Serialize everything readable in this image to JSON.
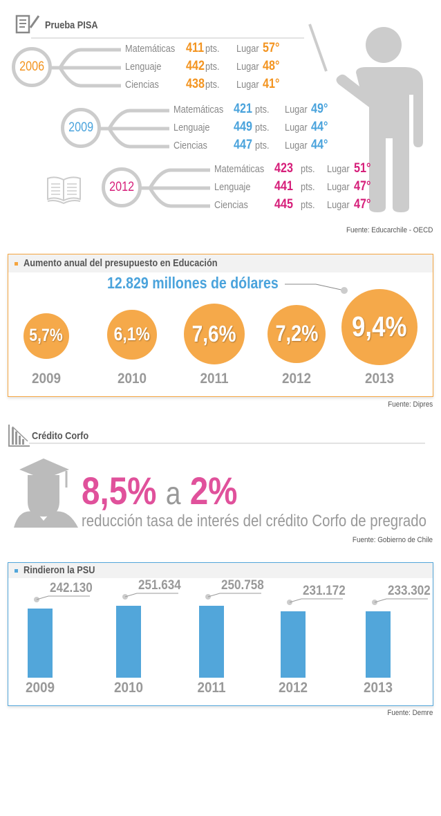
{
  "pisa": {
    "title": "Prueba PISA",
    "source": "Fuente: Educarchile - OECD",
    "pts": "pts.",
    "lugar": "Lugar",
    "years": [
      {
        "year": "2006",
        "color": "#f39420",
        "rows": [
          {
            "subject": "Matemáticas",
            "score": "411",
            "place": "57°"
          },
          {
            "subject": "Lenguaje",
            "score": "442",
            "place": "48°"
          },
          {
            "subject": "Ciencias",
            "score": "438",
            "place": "41°"
          }
        ]
      },
      {
        "year": "2009",
        "color": "#4aa3dc",
        "rows": [
          {
            "subject": "Matemáticas",
            "score": "421",
            "place": "49°"
          },
          {
            "subject": "Lenguaje",
            "score": "449",
            "place": "44°"
          },
          {
            "subject": "Ciencias",
            "score": "447",
            "place": "44°"
          }
        ]
      },
      {
        "year": "2012",
        "color": "#d61f7a",
        "rows": [
          {
            "subject": "Matemáticas",
            "score": "423",
            "place": "51°"
          },
          {
            "subject": "Lenguaje",
            "score": "441",
            "place": "47°"
          },
          {
            "subject": "Ciencias",
            "score": "445",
            "place": "47°"
          }
        ]
      }
    ]
  },
  "budget": {
    "title": "Aumento anual del presupuesto en Educación",
    "highlight": "12.829 millones de dólares",
    "source": "Fuente: Dipres",
    "accent": "#f5a540"
  },
  "corfo": {
    "title": "Crédito Corfo",
    "from": "8,5%",
    "connector": "a",
    "to": "2%",
    "subtitle": "reducción tasa de interés del crédito Corfo de pregrado",
    "source": "Fuente: Gobierno de Chile",
    "accent": "#e0519b"
  },
  "psu": {
    "title": "Rindieron la PSU",
    "source": "Fuente: Demre",
    "accent": "#52a6da"
  },
  "chart_data": [
    {
      "type": "bubble",
      "title": "Aumento anual del presupuesto en Educación",
      "categories": [
        "2009",
        "2010",
        "2011",
        "2012",
        "2013"
      ],
      "values": [
        5.7,
        6.1,
        7.6,
        7.2,
        9.4
      ],
      "labels": [
        "5,7%",
        "6,1%",
        "7,6%",
        "7,2%",
        "9,4%"
      ],
      "unit": "%"
    },
    {
      "type": "bar",
      "title": "Rindieron la PSU",
      "categories": [
        "2009",
        "2010",
        "2011",
        "2012",
        "2013"
      ],
      "values": [
        242130,
        251634,
        250758,
        231172,
        233302
      ],
      "labels": [
        "242.130",
        "251.634",
        "250.758",
        "231.172",
        "233.302"
      ],
      "ylim": [
        0,
        251634
      ]
    }
  ]
}
